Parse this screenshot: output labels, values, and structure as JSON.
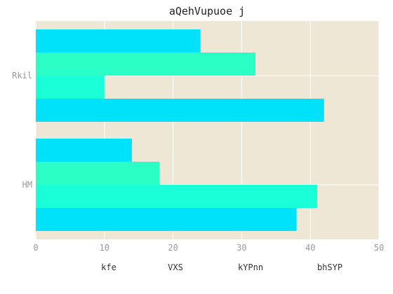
{
  "chart_data": {
    "type": "bar",
    "orientation": "horizontal",
    "title": "aQehVupuoe j",
    "xlabel": "",
    "ylabel": "",
    "xlim": [
      0,
      50
    ],
    "x_ticks": [
      0,
      10,
      20,
      30,
      40,
      50
    ],
    "categories": [
      "Rkil",
      "HM"
    ],
    "series": [
      {
        "name": "kfe",
        "values": [
          24,
          14
        ],
        "color": "#00e1fa"
      },
      {
        "name": "VXS",
        "values": [
          32,
          18
        ],
        "color": "#2bffc6"
      },
      {
        "name": "kYPnn",
        "values": [
          10,
          41
        ],
        "color": "#1bffd8"
      },
      {
        "name": "bhSYP",
        "values": [
          42,
          38
        ],
        "color": "#00e1fa"
      }
    ],
    "grid": true,
    "legend_position": "bottom",
    "background_color": "#eee7d6"
  }
}
